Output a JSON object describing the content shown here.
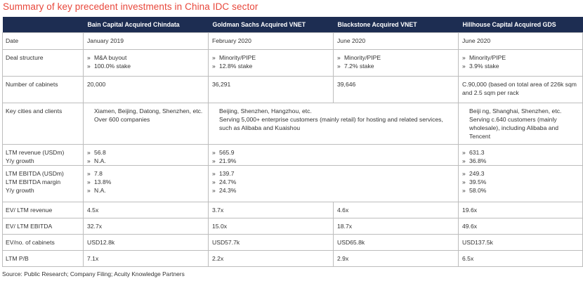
{
  "title": "Summary of key precedent investments in China IDC sector",
  "headers": [
    "",
    "Bain Capital Acquired Chindata",
    "Goldman Sachs Acquired VNET",
    "Blackstone Acquired VNET",
    "Hillhouse Capital Acquired GDS"
  ],
  "rows": {
    "date": {
      "label": [
        "Date"
      ],
      "bain": "January 2019",
      "gs_and_bx": null,
      "goldman": "February 2020",
      "blackstone": "June 2020",
      "hillhouse": "June 2020"
    },
    "deal_structure": {
      "label": [
        "Deal structure"
      ],
      "bain": [
        "M&A buyout",
        "100.0% stake"
      ],
      "goldman": [
        "Minority/PIPE",
        "12.8% stake"
      ],
      "blackstone": [
        "Minority/PIPE",
        "7.2% stake"
      ],
      "hillhouse": [
        "Minority/PIPE",
        "3.9% stake"
      ]
    },
    "cabinets": {
      "label": [
        "Number of cabinets"
      ],
      "bain": "20,000",
      "goldman": "36,291",
      "blackstone": "39,646",
      "hillhouse": "C.90,000 (based on total area of 226k sqm and 2.5 sqm per rack"
    },
    "key_cities": {
      "label": [
        "Key cities and clients"
      ],
      "bain": [
        "Xiamen, Beijing, Datong, Shenzhen, etc.",
        "Over 600 companies"
      ],
      "vnet": [
        "Beijing, Shenzhen, Hangzhou, etc.",
        "Serving 5,000+ enterprise customers (mainly retail) for hosting and related services, such as Alibaba and Kuaishou"
      ],
      "hillhouse": [
        "Beiji ng, Shanghai, Shenzhen, etc.",
        "Serving c.640 customers (mainly wholesale), including Alibaba and Tencent"
      ]
    },
    "ltm_revenue": {
      "label": [
        "LTM revenue (USDm)",
        "Y/y growth"
      ],
      "bain": [
        "56.8",
        "N.A."
      ],
      "vnet": [
        "565.9",
        "21.9%"
      ],
      "hillhouse": [
        "631.3",
        "36.8%"
      ]
    },
    "ltm_ebitda": {
      "label": [
        "LTM EBITDA (USDm)",
        "LTM EBITDA margin",
        "Y/y growth"
      ],
      "bain": [
        "7.8",
        "13.8%",
        "N.A."
      ],
      "vnet": [
        "139.7",
        "24.7%",
        "24.3%"
      ],
      "hillhouse": [
        "249.3",
        "39.5%",
        "58.0%"
      ]
    },
    "ev_revenue": {
      "label": [
        "EV/ LTM revenue"
      ],
      "bain": "4.5x",
      "goldman": "3.7x",
      "blackstone": "4.6x",
      "hillhouse": "19.6x"
    },
    "ev_ebitda": {
      "label": [
        "EV/ LTM EBITDA"
      ],
      "bain": "32.7x",
      "goldman": "15.0x",
      "blackstone": "18.7x",
      "hillhouse": "49.6x"
    },
    "ev_cabinets": {
      "label": [
        "EV/no. of cabinets"
      ],
      "bain": "USD12.8k",
      "goldman": "USD57.7k",
      "blackstone": "USD65.8k",
      "hillhouse": "USD137.5k"
    },
    "ltm_pb": {
      "label": [
        "LTM P/B"
      ],
      "bain": "7.1x",
      "goldman": "2.2x",
      "blackstone": "2.9x",
      "hillhouse": "6.5x"
    }
  },
  "source": "Source: Public Research; Company Filing; Acuity Knowledge Partners"
}
